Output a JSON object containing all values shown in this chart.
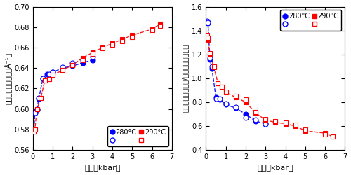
{
  "left_panel": {
    "xlabel": "圧力（kbar）",
    "ylabel_chars": [
      "第",
      "一",
      "ピ",
      "ー",
      "ク",
      "の",
      "位",
      "置",
      "（",
      "Å",
      "⁻¹",
      "）"
    ],
    "ylabel_left": "第一ピークの位置（Å⁻¹）",
    "xlim": [
      0,
      7
    ],
    "ylim": [
      0.56,
      0.7
    ],
    "yticks": [
      0.56,
      0.58,
      0.6,
      0.62,
      0.64,
      0.66,
      0.68,
      0.7
    ],
    "ytick_labels": [
      "0.56",
      "0.58",
      "0.60",
      "0.62",
      "0.64",
      "0.66",
      "0.68",
      "0.70"
    ],
    "xticks": [
      0,
      1,
      2,
      3,
      4,
      5,
      6,
      7
    ],
    "series": {
      "280_filled": {
        "x": [
          0.05,
          0.1,
          0.2,
          0.3,
          0.5,
          0.7,
          1.0,
          1.5,
          2.0,
          2.5,
          3.0
        ],
        "y": [
          0.58,
          0.596,
          0.6,
          0.61,
          0.63,
          0.634,
          0.636,
          0.64,
          0.642,
          0.645,
          0.648
        ],
        "color": "blue",
        "marker": "o",
        "filled": true
      },
      "280_open": {
        "x": [
          0.05,
          0.1,
          0.2,
          0.3,
          0.5,
          0.8,
          1.0,
          1.5,
          2.0,
          2.5,
          3.0
        ],
        "y": [
          0.58,
          0.596,
          0.6,
          0.611,
          0.63,
          0.634,
          0.636,
          0.641,
          0.645,
          0.648,
          0.651
        ],
        "color": "blue",
        "marker": "o",
        "filled": false
      },
      "290_filled": {
        "x": [
          0.05,
          0.1,
          0.2,
          0.4,
          0.6,
          0.8,
          1.0,
          1.5,
          2.0,
          2.5,
          3.0,
          3.5,
          4.0,
          4.5,
          5.0,
          6.0,
          6.4
        ],
        "y": [
          0.578,
          0.58,
          0.6,
          0.611,
          0.628,
          0.629,
          0.633,
          0.638,
          0.643,
          0.65,
          0.655,
          0.66,
          0.664,
          0.668,
          0.672,
          0.678,
          0.683
        ],
        "color": "red",
        "marker": "s",
        "filled": true
      },
      "290_open": {
        "x": [
          0.05,
          0.1,
          0.2,
          0.4,
          0.6,
          0.8,
          1.0,
          1.5,
          2.0,
          2.5,
          3.0,
          3.5,
          4.0,
          4.5,
          5.0,
          6.0,
          6.4
        ],
        "y": [
          0.578,
          0.58,
          0.6,
          0.611,
          0.628,
          0.629,
          0.633,
          0.638,
          0.643,
          0.648,
          0.654,
          0.659,
          0.663,
          0.666,
          0.67,
          0.677,
          0.681
        ],
        "color": "red",
        "marker": "s",
        "filled": false
      }
    },
    "legend_loc": "lower right"
  },
  "right_panel": {
    "xlabel": "圧力（kbar）",
    "ylabel_right": "第一ピークの高さ/第二ピークの高さ",
    "xlim": [
      0,
      7
    ],
    "ylim": [
      0.4,
      1.6
    ],
    "yticks": [
      0.4,
      0.6,
      0.8,
      1.0,
      1.2,
      1.4,
      1.6
    ],
    "ytick_labels": [
      "0.4",
      "0.6",
      "0.8",
      "1.0",
      "1.2",
      "1.4",
      "1.6"
    ],
    "xticks": [
      0,
      1,
      2,
      3,
      4,
      5,
      6,
      7
    ],
    "series": {
      "280_filled": {
        "x": [
          0.05,
          0.1,
          0.2,
          0.3,
          0.5,
          0.7,
          1.0,
          1.5,
          2.0,
          2.5,
          3.0
        ],
        "y": [
          1.47,
          1.46,
          1.16,
          1.08,
          0.84,
          0.82,
          0.78,
          0.75,
          0.7,
          0.64,
          0.62
        ],
        "color": "blue",
        "marker": "o",
        "filled": true
      },
      "280_open": {
        "x": [
          0.05,
          0.1,
          0.2,
          0.3,
          0.5,
          0.7,
          1.0,
          1.5,
          2.0,
          2.5,
          3.0
        ],
        "y": [
          1.48,
          1.47,
          1.17,
          1.1,
          0.83,
          0.83,
          0.79,
          0.76,
          0.67,
          0.65,
          0.62
        ],
        "color": "blue",
        "marker": "o",
        "filled": false
      },
      "290_filled": {
        "x": [
          0.05,
          0.1,
          0.2,
          0.4,
          0.6,
          0.8,
          1.0,
          1.5,
          2.0,
          2.5,
          3.0,
          3.5,
          4.0,
          4.5,
          5.0,
          6.0,
          6.4
        ],
        "y": [
          1.35,
          1.32,
          1.2,
          1.09,
          0.96,
          0.93,
          0.88,
          0.84,
          0.8,
          0.71,
          0.65,
          0.63,
          0.62,
          0.6,
          0.56,
          0.54,
          0.51
        ],
        "color": "red",
        "marker": "s",
        "filled": true
      },
      "290_open": {
        "x": [
          0.05,
          0.1,
          0.2,
          0.4,
          0.6,
          0.8,
          1.0,
          1.5,
          2.0,
          2.5,
          3.0,
          3.5,
          4.0,
          4.5,
          5.0,
          6.0,
          6.4
        ],
        "y": [
          1.36,
          1.34,
          1.21,
          1.1,
          0.96,
          0.93,
          0.89,
          0.85,
          0.82,
          0.72,
          0.66,
          0.64,
          0.63,
          0.61,
          0.57,
          0.53,
          0.51
        ],
        "color": "red",
        "marker": "s",
        "filled": false
      }
    },
    "legend_loc": "upper right"
  },
  "legend_280_label": "280°C",
  "legend_290_label": "290°C",
  "markersize": 5,
  "linewidth": 1.0
}
